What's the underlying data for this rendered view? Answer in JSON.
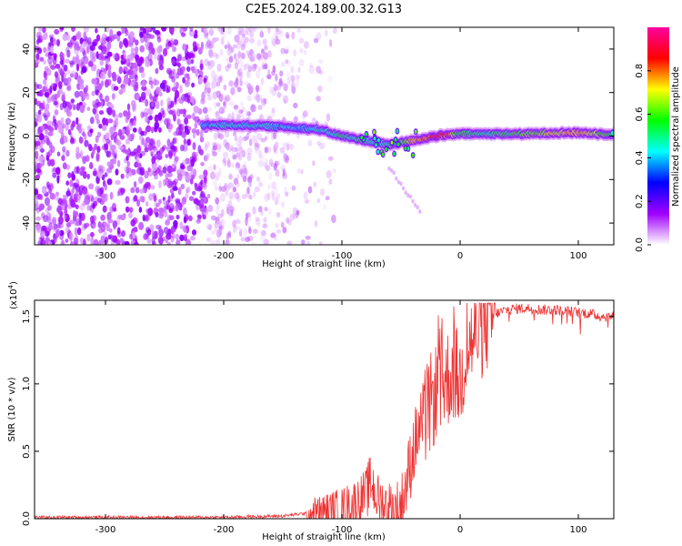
{
  "title": "C2E5.2024.189.00.32.G13",
  "chart_data": [
    {
      "type": "heatmap",
      "xlabel": "Height of straight line (km)",
      "ylabel": "Frequency (Hz)",
      "xlim": [
        -360,
        130
      ],
      "ylim": [
        -50,
        50
      ],
      "x_ticks": [
        -300,
        -200,
        -100,
        0,
        100
      ],
      "x_tick_labels": [
        "-300",
        "-200",
        "-100",
        "0",
        "100"
      ],
      "y_ticks": [
        -40,
        -20,
        0,
        20,
        40
      ],
      "y_tick_labels": [
        "-40",
        "-20",
        "0",
        "20",
        "40"
      ],
      "colorbar": {
        "label": "Normalized spectral amplitude",
        "range": [
          0,
          1
        ],
        "ticks": [
          0,
          0.2,
          0.4,
          0.6,
          0.8
        ],
        "tick_labels": [
          "0.0",
          "0.2",
          "0.4",
          "0.6",
          "0.8"
        ],
        "colors": [
          "#ffffff",
          "#a000ff",
          "#0000ff",
          "#00ffff",
          "#00ff00",
          "#ffff00",
          "#ff0000",
          "#ff00a0"
        ]
      },
      "ridge": {
        "x": [
          -218,
          -200,
          -180,
          -160,
          -140,
          -120,
          -100,
          -90,
          -80,
          -70,
          -60,
          -50,
          -40,
          -30,
          -20,
          -10,
          0,
          20,
          40,
          60,
          80,
          100,
          120,
          130
        ],
        "y": [
          5,
          5,
          5,
          4.5,
          4,
          3,
          0,
          -1,
          -2,
          -3,
          -4,
          -3,
          -2,
          -1,
          0,
          0.5,
          1,
          1,
          1,
          1,
          1.5,
          1.5,
          1,
          1
        ],
        "amplitude": [
          0.4,
          0.45,
          0.45,
          0.45,
          0.4,
          0.45,
          0.5,
          0.5,
          0.5,
          0.45,
          0.5,
          0.55,
          0.75,
          0.8,
          0.85,
          0.8,
          0.55,
          0.5,
          0.55,
          0.6,
          0.7,
          0.75,
          0.6,
          0.5
        ]
      },
      "noise_region": {
        "x_from": -360,
        "x_to": -120,
        "dense_until": -215
      }
    },
    {
      "type": "line",
      "xlabel": "Height of straight line (km)",
      "ylabel": "SNR (10 * v/v)",
      "y_multiplier": "(x10",
      "y_multiplier_exponent": "4",
      "xlim": [
        -360,
        130
      ],
      "ylim": [
        0,
        1.62
      ],
      "x_ticks": [
        -300,
        -200,
        -100,
        0,
        100
      ],
      "x_tick_labels": [
        "-300",
        "-200",
        "-100",
        "0",
        "100"
      ],
      "y_ticks": [
        0,
        0.5,
        1.0,
        1.5
      ],
      "y_tick_labels": [
        "0.0",
        "0.5",
        "1.0",
        "1.5"
      ],
      "color": "#ee3333",
      "series": [
        {
          "x": [
            -360,
            -300,
            -250,
            -200,
            -150,
            -120,
            -100,
            -90,
            -80,
            -75,
            -70,
            -65,
            -60,
            -55,
            -50,
            -45,
            -40,
            -35,
            -30,
            -25,
            -20,
            -15,
            -10,
            -5,
            0,
            5,
            10,
            15,
            20,
            25,
            30,
            40,
            50,
            60,
            70,
            80,
            90,
            100,
            110,
            120,
            130
          ],
          "y": [
            0.01,
            0.01,
            0.01,
            0.01,
            0.02,
            0.05,
            0.08,
            0.12,
            0.18,
            0.28,
            0.14,
            0.1,
            0.08,
            0.06,
            0.1,
            0.28,
            0.5,
            0.65,
            0.75,
            0.85,
            0.95,
            1.0,
            1.05,
            1.1,
            1.0,
            1.25,
            1.32,
            1.38,
            1.42,
            1.47,
            1.52,
            1.55,
            1.56,
            1.56,
            1.55,
            1.55,
            1.54,
            1.53,
            1.52,
            1.5,
            1.5
          ]
        }
      ]
    }
  ]
}
